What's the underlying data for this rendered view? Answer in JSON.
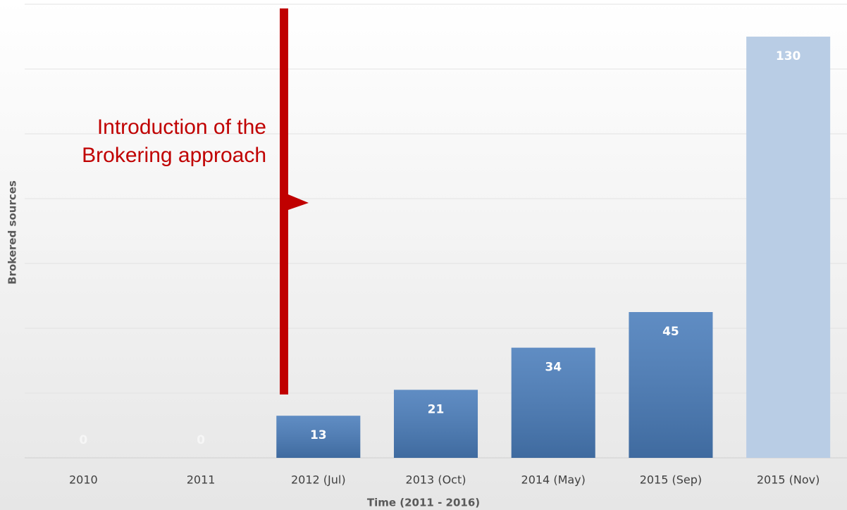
{
  "chart_data": {
    "type": "bar",
    "categories": [
      "2010",
      "2011",
      "2012 (Jul)",
      "2013 (Oct)",
      "2014 (May)",
      "2015 (Sep)",
      "2015 (Nov)"
    ],
    "values": [
      0,
      0,
      13,
      21,
      34,
      45,
      130
    ],
    "colors": [
      "#4a7dbb",
      "#4a7dbb",
      "#4a7dbb",
      "#4a7dbb",
      "#4a7dbb",
      "#4a7dbb",
      "#b9cde5"
    ],
    "xlabel": "Time (2011 - 2016)",
    "ylabel": "Brokered sources",
    "annotation": [
      "Introduction of the",
      "Brokering approach"
    ],
    "annotation_color": "#c00000",
    "ylim": [
      0,
      140
    ],
    "yticks": [
      0,
      20,
      40,
      60,
      80,
      100,
      120,
      140
    ],
    "grid": true
  }
}
